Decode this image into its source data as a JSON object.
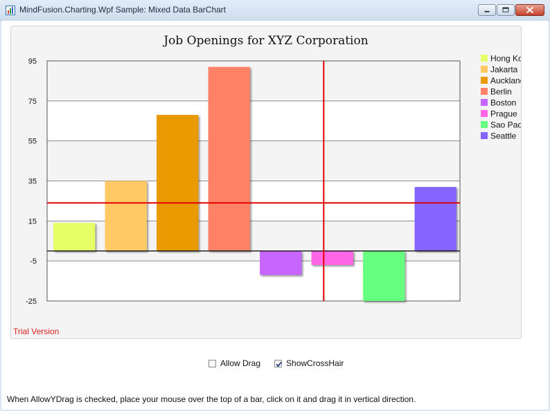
{
  "window": {
    "title": "MindFusion.Charting.Wpf Sample: Mixed Data BarChart",
    "buttons": [
      "minimize",
      "maximize",
      "close"
    ]
  },
  "chart_data": {
    "type": "bar",
    "title": "Job Openings for XYZ Corporation",
    "categories": [
      "Hong Kong",
      "Jakarta",
      "Auckland",
      "Berlin",
      "Boston",
      "Prague",
      "Sao Paolo",
      "Seattle"
    ],
    "values": [
      14,
      35,
      68,
      92,
      -12,
      -7,
      -25,
      32
    ],
    "colors": [
      "#e6ff66",
      "#ffc966",
      "#e89a00",
      "#ff8266",
      "#c766ff",
      "#ff66e6",
      "#66ff80",
      "#8466ff"
    ],
    "ylim": [
      -25,
      95
    ],
    "yticks": [
      "95",
      "75",
      "55",
      "35",
      "15",
      "-5",
      "-25"
    ],
    "grid": true,
    "legend_position": "right",
    "crosshair": {
      "x_category_index": 5.36,
      "y_value": 24
    },
    "trial_text": "Trial Version"
  },
  "options": {
    "allow_drag_label": "Allow Drag",
    "allow_drag_checked": false,
    "show_crosshair_label": "ShowCrossHair",
    "show_crosshair_checked": true
  },
  "hint": "When AllowYDrag is checked, place your mouse over the top of a bar, click on it and drag it in vertical direction."
}
